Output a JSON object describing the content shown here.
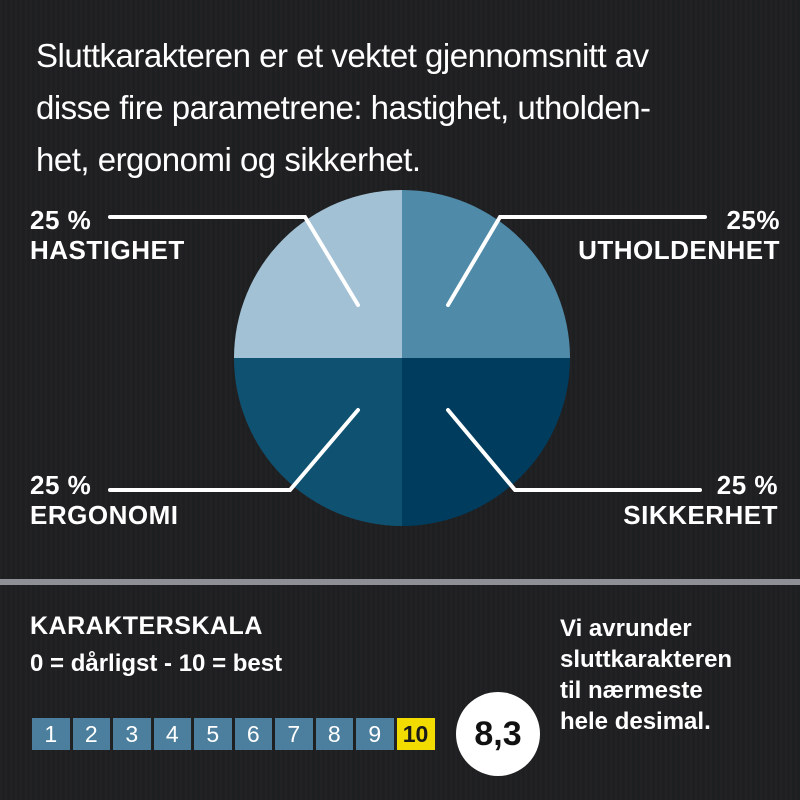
{
  "intro": {
    "lines": [
      "Sluttkarakteren er et vektet gjennomsnitt av",
      "disse fire parametrene: hastighet, utholden-",
      "het, ergonomi og sikkerhet."
    ]
  },
  "chart_data": {
    "type": "pie",
    "title": "",
    "slices": [
      {
        "name": "HASTIGHET",
        "value": 25,
        "label": "25 %",
        "color": "#a3c1d5",
        "position": "top-left"
      },
      {
        "name": "UTHOLDENHET",
        "value": 25,
        "label": "25%",
        "color": "#4f8aa8",
        "position": "top-right"
      },
      {
        "name": "SIKKERHET",
        "value": 25,
        "label": "25 %",
        "color": "#003c5e",
        "position": "bottom-right"
      },
      {
        "name": "ERGONOMI",
        "value": 25,
        "label": "25 %",
        "color": "#0f5170",
        "position": "bottom-left"
      }
    ]
  },
  "scale": {
    "title": "KARAKTERSKALA",
    "subtitle": "0 = dårligst - 10 = best",
    "values": [
      "1",
      "2",
      "3",
      "4",
      "5",
      "6",
      "7",
      "8",
      "9",
      "10"
    ],
    "highlighted": "10",
    "cell_color": "#4c7f9d",
    "highlight_color": "#f2dc00"
  },
  "score": "8,3",
  "note": {
    "lines": [
      "Vi avrunder",
      "sluttkarakteren",
      "til nærmeste",
      "hele desimal."
    ]
  }
}
